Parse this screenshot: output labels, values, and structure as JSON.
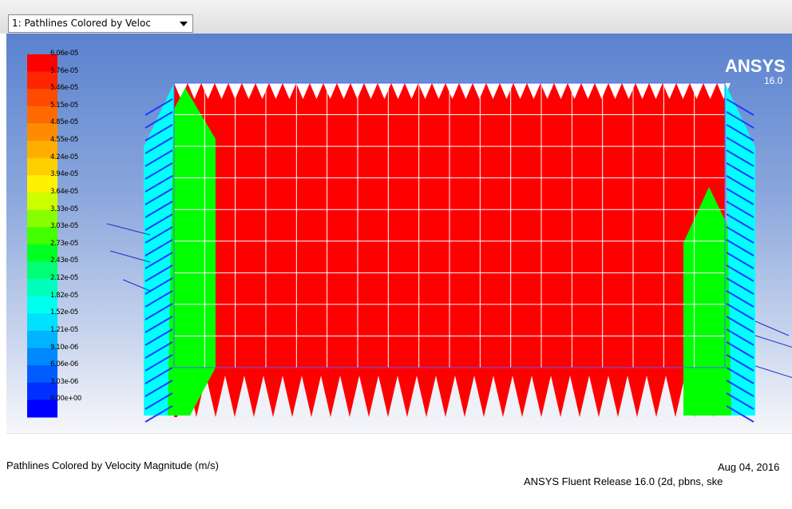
{
  "toolbar": {
    "view_select_value": "1: Pathlines Colored by Veloc"
  },
  "graphics": {
    "logo_text": "ANSYS",
    "logo_version": "16.0",
    "colorbar": {
      "labels": [
        "6.06e-05",
        "5.76e-05",
        "5.46e-05",
        "5.15e-05",
        "4.85e-05",
        "4.55e-05",
        "4.24e-05",
        "3.94e-05",
        "3.64e-05",
        "3.33e-05",
        "3.03e-05",
        "2.73e-05",
        "2.43e-05",
        "2.12e-05",
        "1.82e-05",
        "1.52e-05",
        "1.21e-05",
        "9.10e-06",
        "6.06e-06",
        "3.03e-06",
        "0.00e+00"
      ],
      "colors": [
        "#ff0000",
        "#ff2500",
        "#ff4a00",
        "#ff6a00",
        "#ff8c00",
        "#ffae00",
        "#ffd000",
        "#fff200",
        "#ccff00",
        "#88ff00",
        "#44ff00",
        "#00ff22",
        "#00ff77",
        "#00ffbb",
        "#00ffee",
        "#00e0ff",
        "#00b4ff",
        "#0088ff",
        "#005cff",
        "#0030ff",
        "#0000ff"
      ]
    },
    "domain_color": "#ff0000",
    "inlet_color": "#00ff00",
    "wall_color": "#00ffff",
    "mesh_line_color": "#ffffff"
  },
  "caption": {
    "title": "Pathlines Colored by Velocity Magnitude (m/s)",
    "date": "Aug 04, 2016",
    "release": "ANSYS Fluent Release 16.0 (2d, pbns, ske"
  }
}
